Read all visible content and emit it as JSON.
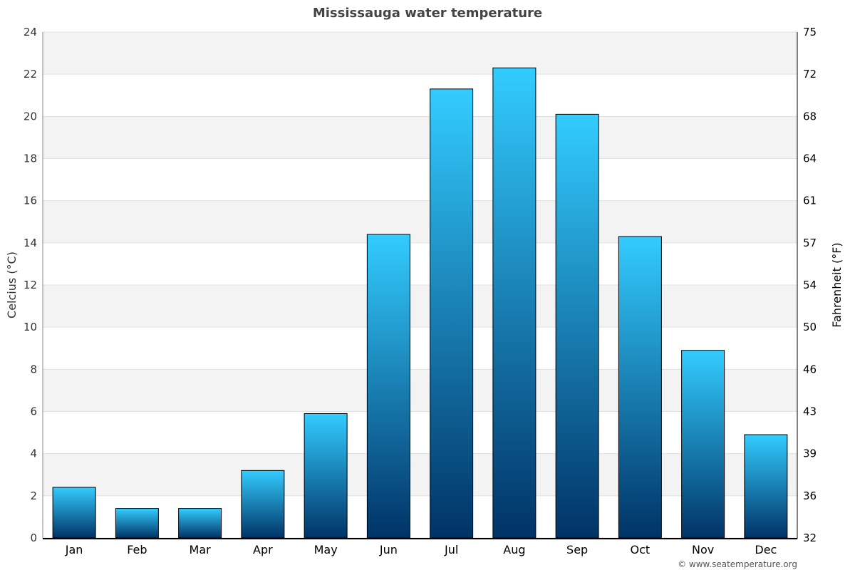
{
  "chart_data": {
    "type": "bar",
    "title": "Mississauga water temperature",
    "categories": [
      "Jan",
      "Feb",
      "Mar",
      "Apr",
      "May",
      "Jun",
      "Jul",
      "Aug",
      "Sep",
      "Oct",
      "Nov",
      "Dec"
    ],
    "values": [
      2.4,
      1.4,
      1.4,
      3.2,
      5.9,
      14.4,
      21.3,
      22.3,
      20.1,
      14.3,
      8.9,
      4.9
    ],
    "ylabel": "Celcius (°C)",
    "y2label": "Fahrenheit (°F)",
    "ylim": [
      0,
      24
    ],
    "yticks": [
      "0",
      "2",
      "4",
      "6",
      "8",
      "10",
      "12",
      "14",
      "16",
      "18",
      "20",
      "22",
      "24"
    ],
    "y2ticks": [
      "32",
      "36",
      "39",
      "43",
      "46",
      "50",
      "54",
      "57",
      "61",
      "64",
      "68",
      "72",
      "75"
    ],
    "grid": true,
    "colors": {
      "bar_top": "#33ccff",
      "bar_bottom": "#003366",
      "band": "#f3f3f3"
    }
  },
  "footer": "© www.seatemperature.org"
}
